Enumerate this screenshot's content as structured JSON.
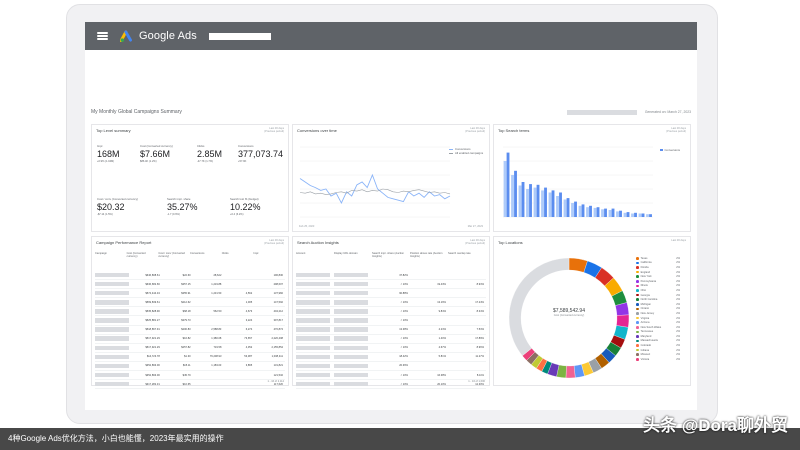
{
  "app": {
    "brand": "Google Ads"
  },
  "summary": {
    "title": "My Monthly Global Campaigns Summary",
    "date": "Generated on: March 27, 2023"
  },
  "top_level": {
    "title": "Top Level summary",
    "note": [
      "Last 30 days",
      "(Previous period)"
    ],
    "metrics": [
      {
        "label": "Impr.",
        "value": "168M",
        "sub": "+0.9% (1.04M)"
      },
      {
        "label": "Cost (Converted currency)",
        "value": "$7.66M",
        "sub": "$86.4K (1.2%)"
      },
      {
        "label": "Clicks",
        "value": "2.85M",
        "sub": "-47.7K (1.7%)"
      },
      {
        "label": "Conversions",
        "value": "377,073.74",
        "sub": "+57.9K"
      },
      {
        "label": "Cost / conv (Converted currency)",
        "value": "$20.32",
        "sub": "-$7.14 (1.5%)"
      },
      {
        "label": "Search impr. share",
        "value": "35.27%",
        "sub": "-1.7 (0.6%)"
      },
      {
        "label": "Search lost IS (budget)",
        "value": "10.22%",
        "sub": "+0.4 (6.2%)"
      }
    ]
  },
  "conversions": {
    "title": "Conversions over time",
    "note": [
      "Last 30 days",
      "(Previous period)"
    ],
    "legend": [
      "Conversions",
      "All enabled campaigns"
    ],
    "x_start": "Feb 25, 2023",
    "x_end": "Mar 27, 2023",
    "colors": {
      "current": "#8ab4f8",
      "previous": "#9aa0a6"
    },
    "chart_data": {
      "type": "line",
      "series": [
        {
          "name": "Conversions",
          "values": [
            0.55,
            0.5,
            0.45,
            0.42,
            0.38,
            0.4,
            0.3,
            0.34,
            0.2,
            0.36,
            0.3,
            0.46,
            0.5,
            0.42,
            0.6,
            0.4,
            0.34,
            0.28,
            0.26,
            0.24,
            0.22,
            0.36,
            0.3,
            0.34,
            0.28,
            0.36,
            0.3,
            0.32,
            0.26,
            0.3
          ]
        },
        {
          "name": "All enabled campaigns",
          "values": [
            0.35,
            0.34,
            0.36,
            0.33,
            0.34,
            0.32,
            0.33,
            0.35,
            0.36,
            0.34,
            0.38,
            0.37,
            0.39,
            0.36,
            0.38,
            0.37,
            0.4,
            0.39,
            0.36,
            0.35,
            0.37,
            0.36,
            0.38,
            0.39,
            0.37,
            0.35,
            0.36,
            0.34,
            0.35,
            0.33
          ]
        }
      ]
    }
  },
  "top_search": {
    "title": "Top Search terms",
    "note": [
      "Last 30 days",
      "(Previous period)"
    ],
    "legend": "Conversions",
    "colors": {
      "current": "#5b8def",
      "previous": "#aecbfa"
    },
    "chart_data": {
      "type": "bar",
      "series": [
        {
          "name": "Conversions",
          "values": [
            92,
            66,
            50,
            47,
            46,
            42,
            38,
            35,
            27,
            22,
            18,
            16,
            14,
            12,
            12,
            9,
            7,
            6,
            5,
            4
          ]
        },
        {
          "name": "previous",
          "values": [
            80,
            60,
            45,
            40,
            42,
            38,
            35,
            30,
            25,
            20,
            16,
            14,
            13,
            11,
            10,
            8,
            6,
            5,
            5,
            4
          ]
        }
      ]
    }
  },
  "perf": {
    "title": "Campaign Performance Report",
    "note": [
      "Last 30 days",
      "(Previous period)"
    ],
    "headers": [
      "Campaign",
      "Cost (Converted currency)",
      "Cost / conv (Converted currency)",
      "Conversions",
      "Clicks",
      "Impr."
    ],
    "rows": [
      [
        "$646,808.61",
        "$22.60",
        "28,622",
        "",
        "196,830"
      ],
      [
        "$636,682.66",
        "$357.15",
        "1,219.88",
        "",
        "298,607"
      ],
      [
        "$574,444.34",
        "$355.91",
        "1,231.50",
        "4,562",
        "137,982"
      ],
      [
        "$569,839.61",
        "$212.62",
        "",
        "1,005",
        "147,592"
      ],
      [
        "$535,828.90",
        "$68.18",
        "562.50",
        "4,673",
        "404,212"
      ],
      [
        "$525,881.27",
        "$379.73",
        "",
        "3,224",
        "397,817"
      ],
      [
        "$518,867.91",
        "$200.83",
        "2,588.83",
        "6,274",
        "470,874"
      ],
      [
        "$517,921.29",
        "$16.82",
        "1,380.08",
        "73,657",
        "2,220,408"
      ],
      [
        "$517,921.29",
        "$257.82",
        "719.58",
        "4,352",
        "2,155,854"
      ],
      [
        "$14,723.78",
        "$1.30",
        "79,208.93",
        "53,387",
        "1,008,411"
      ],
      [
        "$352,893.00",
        "$15.11",
        "1,183.03",
        "3,865",
        "131,821"
      ],
      [
        "$352,893.00",
        "$45.79",
        "",
        "",
        "121,532"
      ],
      [
        "$317,282.31",
        "$10.65",
        "",
        "",
        "117,620"
      ]
    ],
    "footer": "1 - 16 of 2,114"
  },
  "auction": {
    "title": "Search Auction Insights",
    "note": [
      "Last 30 days",
      "(Previous period)"
    ],
    "headers": [
      "Account",
      "Display URL domain",
      "Search impr. share (Auction Insights)",
      "Position above rate (Auction Insights)",
      "Search overlap rate"
    ],
    "rows": [
      [
        "37.82%",
        "",
        ""
      ],
      [
        "< 10%",
        "19.43%",
        "8.93%"
      ],
      [
        "90.88%",
        "",
        ""
      ],
      [
        "< 10%",
        "13.16%",
        "17.24%"
      ],
      [
        "< 10%",
        "9.84%",
        "8.34%"
      ],
      [
        "< 10%",
        "",
        ""
      ],
      [
        "13.38%",
        "4.23%",
        "7.53%"
      ],
      [
        "< 10%",
        "1.40%",
        "17.89%"
      ],
      [
        "< 10%",
        "4.67%",
        "8.96%"
      ],
      [
        "18.42%",
        "5.81%",
        "11.27%"
      ],
      [
        "20.36%",
        "",
        ""
      ],
      [
        "< 10%",
        "16.38%",
        "8.11%"
      ],
      [
        "< 10%",
        "20.10%",
        "12.30%"
      ]
    ],
    "footer": "1 - 16 of 1,600"
  },
  "locations": {
    "title": "Top Locations",
    "note": "Last 30 days",
    "total": "$7,589,542.94",
    "total_label": "Cost (Converted currency)",
    "chart_data": {
      "type": "pie",
      "slices": [
        {
          "name": "Texas",
          "value": 6,
          "color": "#e8710a"
        },
        {
          "name": "California",
          "value": 5,
          "color": "#1a73e8"
        },
        {
          "name": "Florida",
          "value": 5,
          "color": "#d93025"
        },
        {
          "name": "England",
          "value": 5,
          "color": "#f9ab00"
        },
        {
          "name": "New York",
          "value": 4,
          "color": "#1e8e3e"
        },
        {
          "name": "Pennsylvania",
          "value": 4,
          "color": "#9334e6"
        },
        {
          "name": "Illinois",
          "value": 4,
          "color": "#e52592"
        },
        {
          "name": "Ohio",
          "value": 4,
          "color": "#12b5cb"
        },
        {
          "name": "Georgia",
          "value": 3,
          "color": "#a50e0e"
        },
        {
          "name": "North Carolina",
          "value": 3,
          "color": "#188038"
        },
        {
          "name": "Michigan",
          "value": 3,
          "color": "#185abc"
        },
        {
          "name": "Ontario",
          "value": 3,
          "color": "#b06000"
        },
        {
          "name": "New Jersey",
          "value": 3,
          "color": "#9aa0a6"
        },
        {
          "name": "Virginia",
          "value": 3,
          "color": "#fcc934"
        },
        {
          "name": "Arizona",
          "value": 3,
          "color": "#5e97f6"
        },
        {
          "name": "New South Wales",
          "value": 3,
          "color": "#f06292"
        },
        {
          "name": "Tennessee",
          "value": 3,
          "color": "#7cb342"
        },
        {
          "name": "Maryland",
          "value": 3,
          "color": "#673ab7"
        },
        {
          "name": "Massachusetts",
          "value": 2,
          "color": "#00897b"
        },
        {
          "name": "Colorado",
          "value": 2,
          "color": "#ff7043"
        },
        {
          "name": "Indiana",
          "value": 2,
          "color": "#c0ca33"
        },
        {
          "name": "Missouri",
          "value": 2,
          "color": "#8d6e63"
        },
        {
          "name": "Victoria",
          "value": 2,
          "color": "#ec407a"
        },
        {
          "name": "Other",
          "value": 43,
          "color": "#dadce0"
        }
      ]
    },
    "legend_pct": "2%"
  },
  "caption": "4种Google Ads优化方法，小白也能懂，2023年最实用的操作",
  "watermark": "头条 @Dora聊外贸"
}
